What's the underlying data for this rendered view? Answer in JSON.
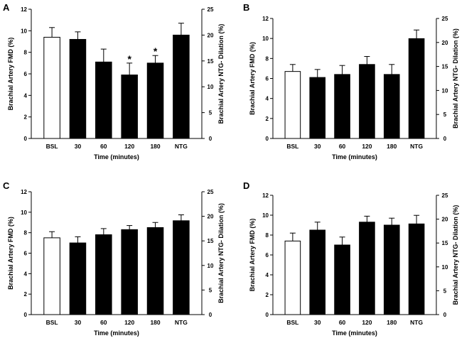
{
  "chart_data": [
    {
      "panel": "A",
      "type": "bar",
      "categories": [
        "BSL",
        "30",
        "60",
        "120",
        "180",
        "NTG"
      ],
      "values": [
        9.4,
        9.2,
        7.1,
        5.9,
        7.0,
        20.0
      ],
      "errors": [
        0.9,
        0.7,
        1.2,
        1.1,
        0.7,
        2.3
      ],
      "bar_colors": [
        "white",
        "black",
        "black",
        "black",
        "black",
        "black"
      ],
      "ntg_index": 5,
      "significance": [
        "",
        "",
        "",
        "*",
        "*",
        ""
      ],
      "xlabel": "Time (minutes)",
      "ylabel": "Brachial Artery FMD (%)",
      "ylabel_right": "Brachial Artery NTG- Dilation (%)",
      "ylim": [
        0,
        12
      ],
      "yticks": [
        "0",
        "2",
        "4",
        "6",
        "8",
        "10",
        "12"
      ],
      "ylim_right": [
        0,
        25
      ],
      "yticks_right": [
        "0",
        "5",
        "10",
        "15",
        "20",
        "25"
      ]
    },
    {
      "panel": "B",
      "type": "bar",
      "categories": [
        "BSL",
        "30",
        "60",
        "120",
        "180",
        "NTG"
      ],
      "values": [
        6.7,
        6.1,
        6.4,
        7.4,
        6.4,
        20.8
      ],
      "errors": [
        0.7,
        0.8,
        0.9,
        0.8,
        1.0,
        1.8
      ],
      "bar_colors": [
        "white",
        "black",
        "black",
        "black",
        "black",
        "black"
      ],
      "ntg_index": 5,
      "significance": [
        "",
        "",
        "",
        "",
        "",
        ""
      ],
      "xlabel": "Time (minutes)",
      "ylabel": "Brachial Artery FMD (%)",
      "ylabel_right": "Brachial Artery NTG- Dilation (%)",
      "ylim": [
        0,
        12
      ],
      "yticks": [
        "0",
        "2",
        "4",
        "6",
        "8",
        "10",
        "12"
      ],
      "ylim_right": [
        0,
        25
      ],
      "yticks_right": [
        "0",
        "5",
        "10",
        "15",
        "20",
        "25"
      ]
    },
    {
      "panel": "C",
      "type": "bar",
      "categories": [
        "BSL",
        "30",
        "60",
        "120",
        "180",
        "NTG"
      ],
      "values": [
        7.5,
        7.0,
        7.8,
        8.3,
        8.5,
        19.1
      ],
      "errors": [
        0.6,
        0.6,
        0.6,
        0.4,
        0.5,
        1.2
      ],
      "bar_colors": [
        "white",
        "black",
        "black",
        "black",
        "black",
        "black"
      ],
      "ntg_index": 5,
      "significance": [
        "",
        "",
        "",
        "",
        "",
        ""
      ],
      "xlabel": "Time (minutes)",
      "ylabel": "Brachial Artery FMD (%)",
      "ylabel_right": "Brachial Artery NTG- Dilation (%)",
      "ylim": [
        0,
        12
      ],
      "yticks": [
        "0",
        "2",
        "4",
        "6",
        "8",
        "10",
        "12"
      ],
      "ylim_right": [
        0,
        25
      ],
      "yticks_right": [
        "0",
        "5",
        "10",
        "15",
        "20",
        "25"
      ]
    },
    {
      "panel": "D",
      "type": "bar",
      "categories": [
        "BSL",
        "30",
        "60",
        "120",
        "180",
        "NTG"
      ],
      "values": [
        7.4,
        8.5,
        7.0,
        9.3,
        9.0,
        19.0
      ],
      "errors": [
        0.8,
        0.8,
        0.8,
        0.6,
        0.7,
        1.8
      ],
      "bar_colors": [
        "white",
        "black",
        "black",
        "black",
        "black",
        "black"
      ],
      "ntg_index": 5,
      "significance": [
        "",
        "",
        "",
        "",
        "",
        ""
      ],
      "xlabel": "Time (minutes)",
      "ylabel": "Brachial Artery FMD (%)",
      "ylabel_right": "Brachial Artery NTG- Dilation (%)",
      "ylim": [
        0,
        12
      ],
      "yticks": [
        "0",
        "2",
        "4",
        "6",
        "8",
        "10",
        "12"
      ],
      "ylim_right": [
        0,
        25
      ],
      "yticks_right": [
        "0",
        "5",
        "10",
        "15",
        "20",
        "25"
      ]
    }
  ]
}
